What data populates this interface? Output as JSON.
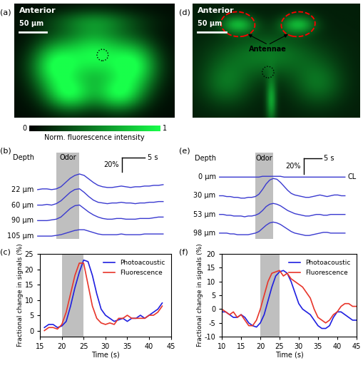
{
  "images": [
    {
      "panel": "(a)",
      "text": "Anterior",
      "scale_bar": "50 μm"
    },
    {
      "panel": "(d)",
      "text": "Anterior",
      "scale_bar": "50 μm",
      "annotation": "Antennae"
    }
  ],
  "colorbar": {
    "ticks": [
      0,
      1
    ],
    "label": "Norm. fluorescence intensity"
  },
  "chart_data": [
    {
      "panel": "(b)",
      "type": "line",
      "tick_labels": false,
      "row_header": "Depth",
      "stimulus": {
        "x": [
          20,
          25
        ],
        "label": "Odor"
      },
      "scale_bar": {
        "y": {
          "value": 20,
          "label": "20%"
        },
        "x": {
          "value": 5,
          "label": "5 s"
        }
      },
      "x": [
        16,
        17,
        18,
        19,
        20,
        21,
        22,
        23,
        24,
        25,
        26,
        27,
        28,
        29,
        30,
        31,
        32,
        33,
        34,
        35,
        36,
        37,
        38,
        39,
        40,
        41,
        42,
        43
      ],
      "series": [
        {
          "name": "22 μm",
          "color": "#3a3ad0",
          "values": [
            0,
            1,
            1,
            0,
            1,
            4,
            10,
            16,
            20,
            22,
            20,
            15,
            10,
            6,
            4,
            3,
            3,
            4,
            5,
            4,
            3,
            4,
            4,
            5,
            5,
            6,
            6,
            7
          ]
        },
        {
          "name": "60 μm",
          "color": "#3a3ad0",
          "values": [
            0,
            0,
            1,
            0,
            2,
            6,
            12,
            18,
            22,
            23,
            18,
            12,
            7,
            4,
            3,
            2,
            3,
            3,
            4,
            3,
            3,
            2,
            3,
            3,
            4,
            4,
            5,
            5
          ]
        },
        {
          "name": "90 μm",
          "color": "#3a3ad0",
          "values": [
            0,
            0,
            0,
            1,
            2,
            5,
            11,
            17,
            21,
            22,
            17,
            12,
            8,
            5,
            3,
            2,
            2,
            3,
            3,
            2,
            2,
            2,
            3,
            3,
            3,
            4,
            5,
            5
          ]
        },
        {
          "name": "105 μm",
          "color": "#3a3ad0",
          "values": [
            0,
            0,
            0,
            0,
            1,
            2,
            4,
            6,
            8,
            9,
            9,
            7,
            5,
            3,
            2,
            2,
            2,
            2,
            3,
            2,
            2,
            2,
            2,
            3,
            3,
            3,
            3,
            3
          ]
        }
      ]
    },
    {
      "panel": "(c)",
      "type": "line",
      "x_label": "Time (s)",
      "y_label": "Fractional change in signals (%)",
      "stimulus": {
        "x": [
          20,
          25
        ]
      },
      "legend": "upper right",
      "grid": false,
      "xlim": [
        15,
        45
      ],
      "xticks": [
        15,
        20,
        25,
        30,
        35,
        40,
        45
      ],
      "ylim": [
        -2,
        25
      ],
      "yticks": [
        0,
        5,
        10,
        15,
        20,
        25
      ],
      "x": [
        16,
        17,
        18,
        19,
        20,
        21,
        22,
        23,
        24,
        25,
        26,
        27,
        28,
        29,
        30,
        31,
        32,
        33,
        34,
        35,
        36,
        37,
        38,
        39,
        40,
        41,
        42,
        43
      ],
      "series": [
        {
          "name": "Photoacoustic",
          "color": "#1f1fe0",
          "values": [
            1,
            2,
            2,
            1,
            1.5,
            3,
            8,
            14,
            19,
            23,
            22.5,
            18,
            12,
            7,
            5,
            4,
            3,
            3.5,
            4,
            3,
            4,
            4,
            5,
            4,
            5,
            6,
            7,
            9
          ]
        },
        {
          "name": "Fluorescence",
          "color": "#e8352a",
          "values": [
            0,
            1,
            1,
            0.5,
            2,
            6,
            12,
            18,
            22,
            22,
            15,
            8,
            4,
            2.5,
            2,
            2.5,
            2,
            4,
            4,
            5,
            4,
            4,
            4,
            4,
            5,
            5,
            6,
            8
          ]
        }
      ]
    },
    {
      "panel": "(e)",
      "type": "line",
      "tick_labels": false,
      "row_header": "Depth",
      "stimulus": {
        "x": [
          20,
          25
        ],
        "label": "Odor"
      },
      "scale_bar": {
        "y": {
          "value": 20,
          "label": "20%"
        },
        "x": {
          "value": 5,
          "label": "5 s"
        }
      },
      "x": [
        10,
        11,
        12,
        13,
        14,
        15,
        16,
        17,
        18,
        19,
        20,
        21,
        22,
        23,
        24,
        25,
        26,
        27,
        28,
        29,
        30,
        31,
        32,
        33,
        34,
        35,
        36,
        37,
        38,
        39,
        40,
        41,
        42,
        43,
        44,
        45
      ],
      "series": [
        {
          "name": "0 μm",
          "annotation": "CL",
          "color": "#3a3ad0",
          "values": [
            0,
            0,
            0,
            0,
            0,
            0,
            0,
            0,
            0,
            0,
            0,
            0,
            1,
            1,
            1,
            1,
            1,
            1,
            0,
            0,
            0,
            0,
            0,
            0,
            0,
            0,
            0,
            0,
            0,
            0,
            0,
            0,
            0,
            0,
            0,
            0
          ]
        },
        {
          "name": "30 μm",
          "color": "#3a3ad0",
          "values": [
            0,
            0,
            -1,
            -1,
            -2,
            -2,
            -3,
            -3,
            -2,
            -2,
            -1,
            2,
            8,
            15,
            20,
            22,
            21,
            17,
            12,
            7,
            3,
            1,
            0,
            -1,
            -2,
            -2,
            -1,
            0,
            1,
            0,
            -1,
            0,
            1,
            1,
            0,
            0
          ]
        },
        {
          "name": "53 μm",
          "color": "#3a3ad0",
          "values": [
            0,
            0,
            -1,
            -1,
            -2,
            -2,
            -2,
            -3,
            -2,
            -2,
            -1,
            1,
            5,
            10,
            13,
            14,
            13,
            11,
            8,
            5,
            3,
            1,
            0,
            -1,
            -2,
            -2,
            -1,
            0,
            0,
            -1,
            -1,
            0,
            0,
            0,
            0,
            0
          ]
        },
        {
          "name": "98 μm",
          "color": "#3a3ad0",
          "values": [
            0,
            0,
            0,
            -1,
            -1,
            -2,
            -2,
            -2,
            -2,
            -1,
            0,
            2,
            6,
            10,
            13,
            14,
            13,
            11,
            8,
            5,
            2,
            0,
            -1,
            -2,
            -3,
            -3,
            -2,
            -1,
            0,
            1,
            1,
            0,
            0,
            0,
            0,
            0
          ]
        }
      ]
    },
    {
      "panel": "(f)",
      "type": "line",
      "x_label": "Time (s)",
      "y_label": "Fractional change in signals (%)",
      "stimulus": {
        "x": [
          20,
          25
        ]
      },
      "legend": "upper right",
      "grid": false,
      "xlim": [
        10,
        45
      ],
      "xticks": [
        10,
        15,
        20,
        25,
        30,
        35,
        40,
        45
      ],
      "ylim": [
        -10,
        20
      ],
      "yticks": [
        -10,
        -5,
        0,
        5,
        10,
        15,
        20
      ],
      "x": [
        10,
        11,
        12,
        13,
        14,
        15,
        16,
        17,
        18,
        19,
        20,
        21,
        22,
        23,
        24,
        25,
        26,
        27,
        28,
        29,
        30,
        31,
        32,
        33,
        34,
        35,
        36,
        37,
        38,
        39,
        40,
        41,
        42,
        43,
        44,
        45
      ],
      "series": [
        {
          "name": "Photoacoustic",
          "color": "#1f1fe0",
          "values": [
            -1,
            -1,
            -2,
            -3,
            -3,
            -2,
            -3,
            -5,
            -6,
            -6.5,
            -5,
            -2,
            3,
            8,
            12,
            13.5,
            14,
            13,
            10,
            6,
            2,
            0,
            -1,
            -2,
            -4,
            -6,
            -7,
            -7,
            -6,
            -3,
            -1,
            -1,
            -2,
            -3,
            -4,
            -4
          ]
        },
        {
          "name": "Fluorescence",
          "color": "#e8352a",
          "values": [
            0,
            -1,
            -2,
            -1,
            -3,
            -2,
            -4,
            -6,
            -6,
            -4,
            0,
            5,
            10,
            13,
            13.5,
            14,
            12,
            13,
            11,
            10,
            9,
            8,
            6,
            4,
            0,
            -3,
            -4,
            -5,
            -4,
            -2,
            -1,
            1,
            2,
            2,
            1,
            1
          ]
        }
      ]
    }
  ]
}
